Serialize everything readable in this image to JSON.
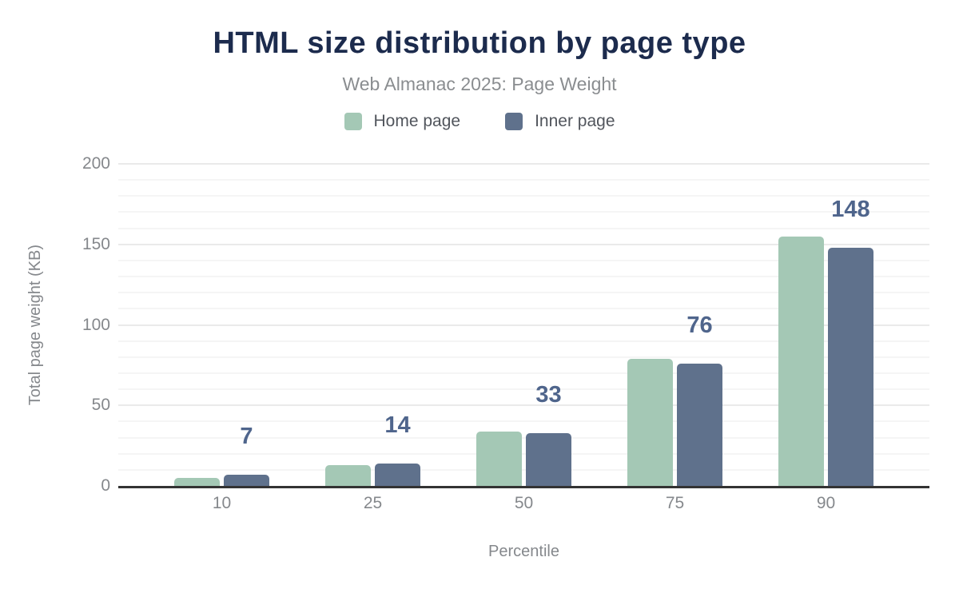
{
  "figure": {
    "title": "HTML size distribution by page type",
    "subtitle": "Web Almanac 2025: Page Weight"
  },
  "legend": {
    "items": [
      {
        "label": "Home page",
        "color": "#a4c8b5"
      },
      {
        "label": "Inner page",
        "color": "#5f718c"
      }
    ]
  },
  "axes": {
    "x_title": "Percentile",
    "y_title": "Total page weight (KB)"
  },
  "colors": {
    "title_text": "#1c2b4d",
    "subtitle_text": "#8a8d90",
    "legend_text": "#51555c",
    "tick_text": "#85888c",
    "data_label_text": "#4f658c",
    "axis_baseline": "#333333",
    "home_bar": "#a4c8b5",
    "inner_bar": "#5f718c",
    "major_gridline": "#eaeaea",
    "minor_gridline": "#f5f5f5"
  },
  "chart_data": {
    "type": "bar",
    "title": "HTML size distribution by page type",
    "subtitle": "Web Almanac 2025: Page Weight",
    "xlabel": "Percentile",
    "ylabel": "Total page weight (KB)",
    "categories": [
      "10",
      "25",
      "50",
      "75",
      "90"
    ],
    "series": [
      {
        "name": "Home page",
        "color": "#a4c8b5",
        "values": [
          5,
          13,
          34,
          79,
          155
        ]
      },
      {
        "name": "Inner page",
        "color": "#5f718c",
        "values": [
          7,
          14,
          33,
          76,
          148
        ],
        "data_labels": [
          "7",
          "14",
          "33",
          "76",
          "148"
        ]
      }
    ],
    "ylim": [
      0,
      200
    ],
    "yticks": [
      0,
      50,
      100,
      150,
      200
    ],
    "minor_gridline_step": 10,
    "grid": "horizontal",
    "legend_position": "top",
    "data_labels_shown_for": "Inner page"
  }
}
